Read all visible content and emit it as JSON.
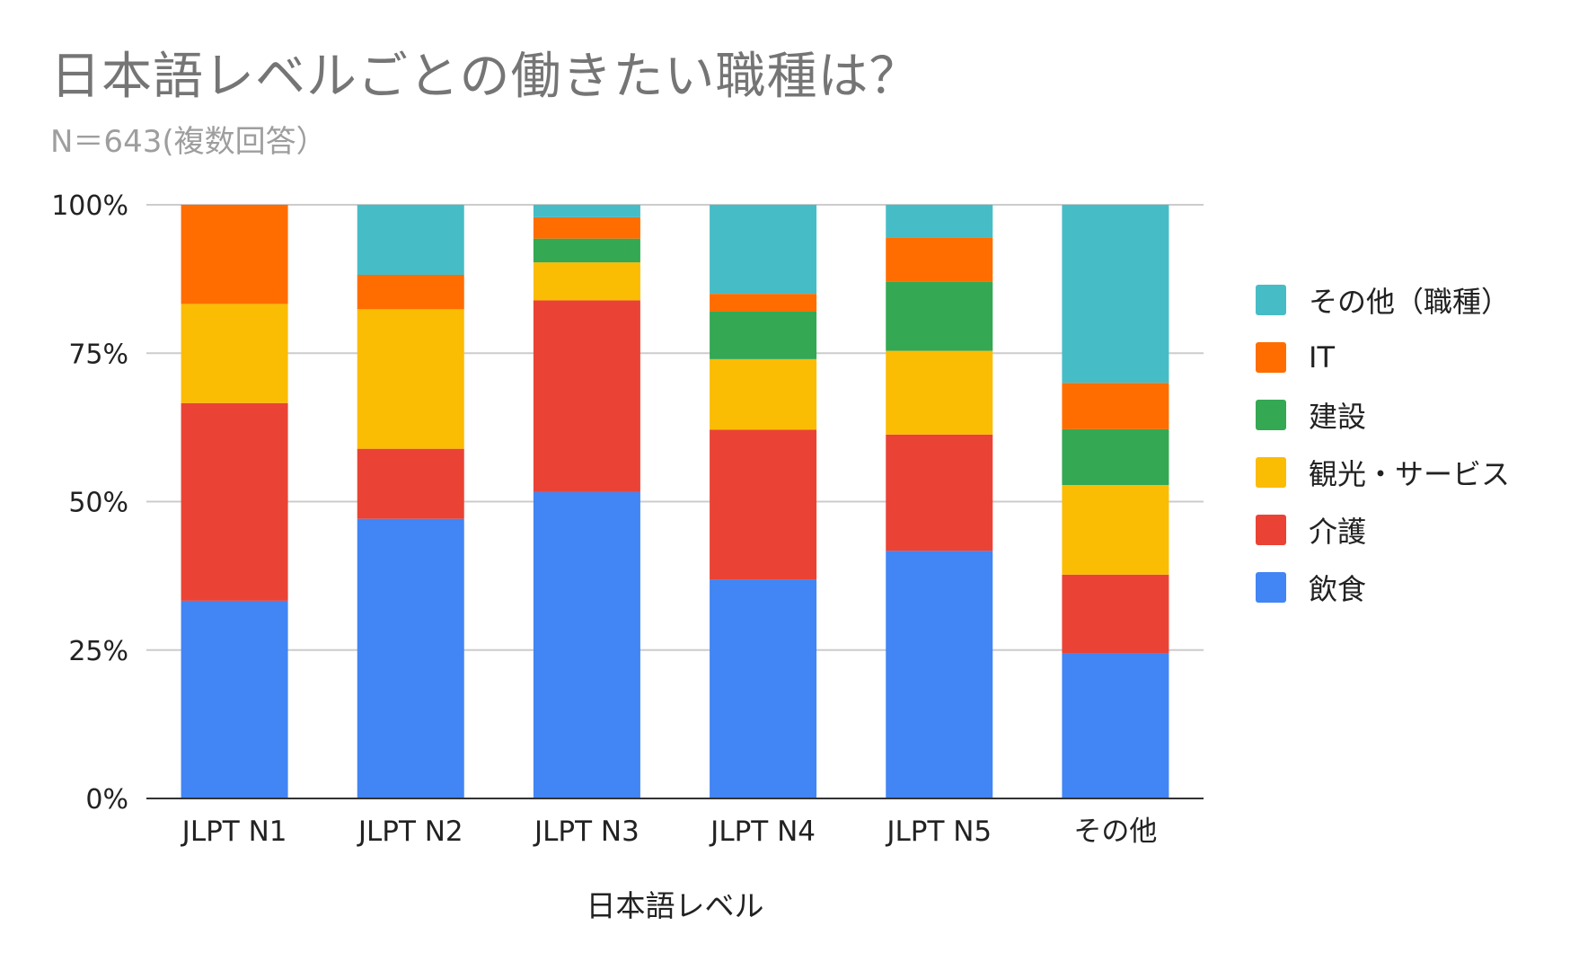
{
  "chart_data": {
    "type": "bar",
    "stacked": "percent",
    "title": "日本語レベルごとの働きたい職種は？",
    "subtitle": "N＝643(複数回答）",
    "xlabel": "日本語レベル",
    "ylabel": "",
    "ylim": [
      0,
      100
    ],
    "y_ticks": [
      "0%",
      "25%",
      "50%",
      "75%",
      "100%"
    ],
    "y_tick_values": [
      0,
      25,
      50,
      75,
      100
    ],
    "grid": true,
    "legend_position": "right",
    "categories": [
      "JLPT N1",
      "JLPT N2",
      "JLPT N3",
      "JLPT N4",
      "JLPT N5",
      "その他"
    ],
    "series": [
      {
        "name": "飲食",
        "color": "#4285f4",
        "values": [
          33.3,
          47.1,
          51.6,
          36.9,
          41.7,
          24.5
        ]
      },
      {
        "name": "介護",
        "color": "#ea4335",
        "values": [
          33.3,
          11.8,
          32.3,
          25.2,
          19.6,
          13.2
        ]
      },
      {
        "name": "観光・サービス",
        "color": "#fbbc04",
        "values": [
          16.7,
          23.5,
          6.4,
          11.9,
          14.1,
          15.1
        ]
      },
      {
        "name": "建設",
        "color": "#34a853",
        "values": [
          0,
          0,
          4.0,
          8.0,
          11.6,
          9.4
        ]
      },
      {
        "name": "IT",
        "color": "#ff6d01",
        "values": [
          16.7,
          5.8,
          3.6,
          3.0,
          7.5,
          7.8
        ]
      },
      {
        "name": "その他（職種）",
        "color": "#46bdc6",
        "values": [
          0,
          11.8,
          2.1,
          15.0,
          5.5,
          30.0
        ]
      }
    ]
  }
}
